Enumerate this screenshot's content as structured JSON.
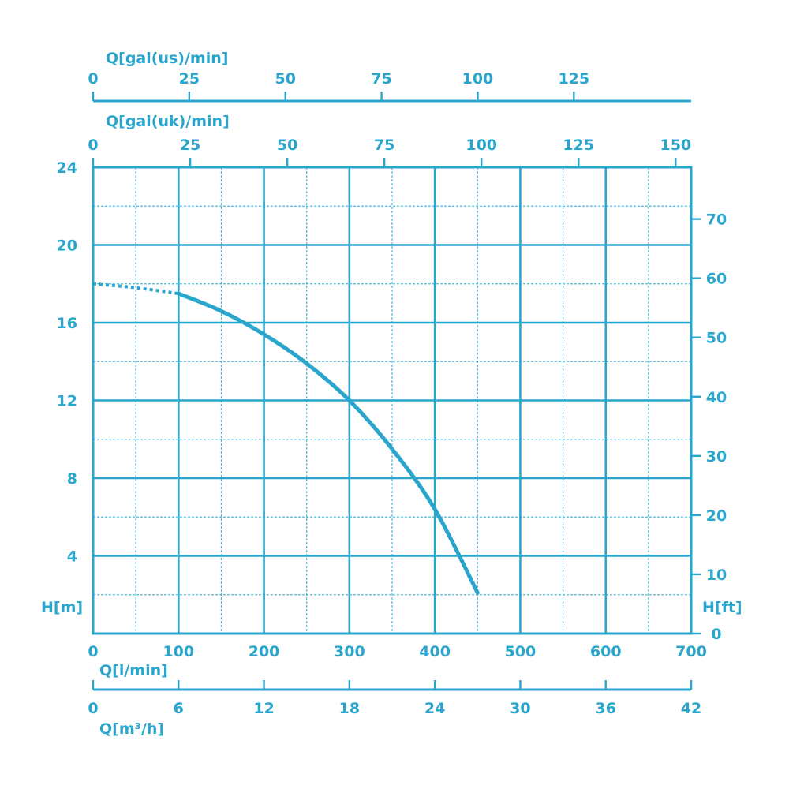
{
  "chart_data": {
    "type": "line",
    "colors": {
      "line": "#2aa6cc",
      "grid": "#2aa6cc",
      "text": "#2aa6cc",
      "background": "#ffffff"
    },
    "axes": {
      "left": {
        "label": "H[m]",
        "range": [
          0,
          24
        ],
        "ticks": [
          4,
          8,
          12,
          16,
          20,
          24
        ]
      },
      "right": {
        "label": "H[ft]",
        "range": [
          0,
          78.74
        ],
        "ticks": [
          0,
          10,
          20,
          30,
          40,
          50,
          60,
          70
        ]
      },
      "bottom_primary": {
        "label": "Q[l/min]",
        "range": [
          0,
          700
        ],
        "ticks": [
          0,
          100,
          200,
          300,
          400,
          500,
          600,
          700
        ]
      },
      "bottom_secondary": {
        "label": "Q[m³/h]",
        "range": [
          0,
          42
        ],
        "ticks": [
          0,
          6,
          12,
          18,
          24,
          30,
          36,
          42
        ]
      },
      "top_uk": {
        "label": "Q[gal(uk)/min]",
        "range": [
          0,
          154
        ],
        "ticks": [
          0,
          25,
          50,
          75,
          100,
          125,
          150
        ]
      },
      "top_us": {
        "label": "Q[gal(us)/min]",
        "range": [
          0,
          155.5
        ],
        "ticks": [
          0,
          25,
          50,
          75,
          100,
          125
        ]
      }
    },
    "grid": true,
    "minor_grid": true,
    "series": [
      {
        "x": [
          100,
          150,
          200,
          250,
          300,
          350,
          400,
          450
        ],
        "y": [
          17.5,
          16.6,
          15.4,
          13.9,
          12.0,
          9.5,
          6.4,
          2.1
        ]
      }
    ],
    "dotted_segment": {
      "x": [
        0,
        50,
        100
      ],
      "y": [
        18.0,
        17.8,
        17.5
      ]
    }
  }
}
